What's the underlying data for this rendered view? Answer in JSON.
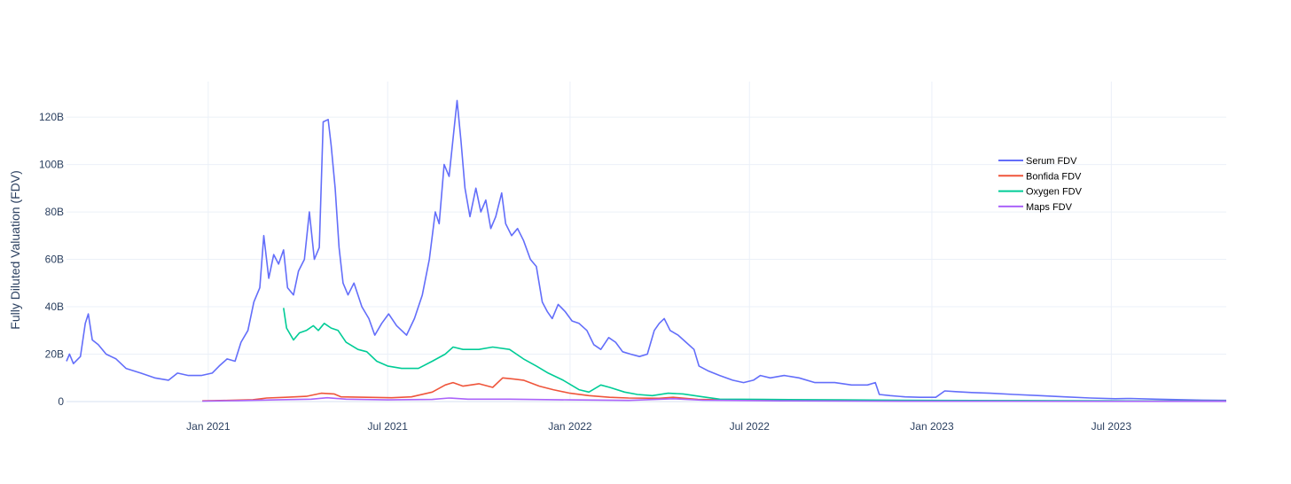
{
  "chart_data": {
    "type": "line",
    "title": "",
    "xlabel": "",
    "ylabel": "Fully Diluted Valuation (FDV)",
    "x_tick_labels": [
      "Jan 2021",
      "Jul 2021",
      "Jan 2022",
      "Jul 2022",
      "Jan 2023",
      "Jul 2023"
    ],
    "y_tick_labels": [
      "0",
      "20B",
      "40B",
      "60B",
      "80B",
      "100B",
      "120B"
    ],
    "xlim": [
      "2020-08-11",
      "2023-10-25"
    ],
    "ylim": [
      0,
      135
    ],
    "y_unit": "billions USD",
    "grid": true,
    "legend_position": "top-right",
    "series": [
      {
        "name": "Serum FDV",
        "color": "#636efa",
        "points": [
          [
            "2020-08-11",
            17
          ],
          [
            "2020-08-14",
            20
          ],
          [
            "2020-08-18",
            16
          ],
          [
            "2020-08-25",
            19
          ],
          [
            "2020-08-30",
            33
          ],
          [
            "2020-09-02",
            37
          ],
          [
            "2020-09-06",
            26
          ],
          [
            "2020-09-12",
            24
          ],
          [
            "2020-09-20",
            20
          ],
          [
            "2020-09-30",
            18
          ],
          [
            "2020-10-10",
            14
          ],
          [
            "2020-10-25",
            12
          ],
          [
            "2020-11-08",
            10
          ],
          [
            "2020-11-22",
            9
          ],
          [
            "2020-12-01",
            12
          ],
          [
            "2020-12-12",
            11
          ],
          [
            "2020-12-25",
            11
          ],
          [
            "2021-01-05",
            12
          ],
          [
            "2021-01-12",
            15
          ],
          [
            "2021-01-20",
            18
          ],
          [
            "2021-01-28",
            17
          ],
          [
            "2021-02-03",
            25
          ],
          [
            "2021-02-10",
            30
          ],
          [
            "2021-02-16",
            42
          ],
          [
            "2021-02-22",
            48
          ],
          [
            "2021-02-26",
            70
          ],
          [
            "2021-03-03",
            52
          ],
          [
            "2021-03-08",
            62
          ],
          [
            "2021-03-13",
            58
          ],
          [
            "2021-03-18",
            64
          ],
          [
            "2021-03-22",
            48
          ],
          [
            "2021-03-28",
            45
          ],
          [
            "2021-04-02",
            55
          ],
          [
            "2021-04-08",
            60
          ],
          [
            "2021-04-13",
            80
          ],
          [
            "2021-04-18",
            60
          ],
          [
            "2021-04-23",
            65
          ],
          [
            "2021-04-27",
            118
          ],
          [
            "2021-05-02",
            119
          ],
          [
            "2021-05-05",
            108
          ],
          [
            "2021-05-09",
            90
          ],
          [
            "2021-05-13",
            65
          ],
          [
            "2021-05-17",
            50
          ],
          [
            "2021-05-22",
            45
          ],
          [
            "2021-05-28",
            50
          ],
          [
            "2021-06-05",
            40
          ],
          [
            "2021-06-12",
            35
          ],
          [
            "2021-06-18",
            28
          ],
          [
            "2021-06-25",
            33
          ],
          [
            "2021-07-02",
            37
          ],
          [
            "2021-07-10",
            32
          ],
          [
            "2021-07-20",
            28
          ],
          [
            "2021-07-28",
            35
          ],
          [
            "2021-08-05",
            45
          ],
          [
            "2021-08-12",
            60
          ],
          [
            "2021-08-18",
            80
          ],
          [
            "2021-08-22",
            75
          ],
          [
            "2021-08-27",
            100
          ],
          [
            "2021-09-01",
            95
          ],
          [
            "2021-09-06",
            115
          ],
          [
            "2021-09-09",
            127
          ],
          [
            "2021-09-13",
            110
          ],
          [
            "2021-09-17",
            90
          ],
          [
            "2021-09-22",
            78
          ],
          [
            "2021-09-28",
            90
          ],
          [
            "2021-10-03",
            80
          ],
          [
            "2021-10-08",
            85
          ],
          [
            "2021-10-13",
            73
          ],
          [
            "2021-10-18",
            78
          ],
          [
            "2021-10-24",
            88
          ],
          [
            "2021-10-28",
            75
          ],
          [
            "2021-11-03",
            70
          ],
          [
            "2021-11-09",
            73
          ],
          [
            "2021-11-15",
            68
          ],
          [
            "2021-11-22",
            60
          ],
          [
            "2021-11-28",
            57
          ],
          [
            "2021-12-04",
            42
          ],
          [
            "2021-12-09",
            38
          ],
          [
            "2021-12-14",
            35
          ],
          [
            "2021-12-20",
            41
          ],
          [
            "2021-12-27",
            38
          ],
          [
            "2022-01-03",
            34
          ],
          [
            "2022-01-10",
            33
          ],
          [
            "2022-01-18",
            30
          ],
          [
            "2022-01-25",
            24
          ],
          [
            "2022-02-01",
            22
          ],
          [
            "2022-02-09",
            27
          ],
          [
            "2022-02-16",
            25
          ],
          [
            "2022-02-23",
            21
          ],
          [
            "2022-03-03",
            20
          ],
          [
            "2022-03-12",
            19
          ],
          [
            "2022-03-20",
            20
          ],
          [
            "2022-03-27",
            30
          ],
          [
            "2022-04-01",
            33
          ],
          [
            "2022-04-06",
            35
          ],
          [
            "2022-04-12",
            30
          ],
          [
            "2022-04-20",
            28
          ],
          [
            "2022-04-28",
            25
          ],
          [
            "2022-05-06",
            22
          ],
          [
            "2022-05-11",
            15
          ],
          [
            "2022-05-20",
            13
          ],
          [
            "2022-06-01",
            11
          ],
          [
            "2022-06-14",
            9
          ],
          [
            "2022-06-25",
            8
          ],
          [
            "2022-07-05",
            9
          ],
          [
            "2022-07-12",
            11
          ],
          [
            "2022-07-22",
            10
          ],
          [
            "2022-08-05",
            11
          ],
          [
            "2022-08-20",
            10
          ],
          [
            "2022-09-05",
            8
          ],
          [
            "2022-09-25",
            8
          ],
          [
            "2022-10-12",
            7
          ],
          [
            "2022-10-28",
            7
          ],
          [
            "2022-11-05",
            8
          ],
          [
            "2022-11-09",
            3
          ],
          [
            "2022-11-20",
            2.5
          ],
          [
            "2022-12-05",
            2
          ],
          [
            "2022-12-20",
            1.8
          ],
          [
            "2023-01-05",
            1.8
          ],
          [
            "2023-01-14",
            4.5
          ],
          [
            "2023-01-25",
            4.2
          ],
          [
            "2023-02-10",
            3.8
          ],
          [
            "2023-03-01",
            3.5
          ],
          [
            "2023-03-25",
            3.0
          ],
          [
            "2023-04-20",
            2.5
          ],
          [
            "2023-05-15",
            2.0
          ],
          [
            "2023-06-10",
            1.5
          ],
          [
            "2023-07-05",
            1.2
          ],
          [
            "2023-07-20",
            1.3
          ],
          [
            "2023-08-15",
            1.0
          ],
          [
            "2023-09-10",
            0.8
          ],
          [
            "2023-10-01",
            0.6
          ],
          [
            "2023-10-25",
            0.5
          ]
        ]
      },
      {
        "name": "Bonfida FDV",
        "color": "#ef553b",
        "points": [
          [
            "2020-12-26",
            0.3
          ],
          [
            "2021-01-20",
            0.5
          ],
          [
            "2021-02-15",
            0.8
          ],
          [
            "2021-03-01",
            1.5
          ],
          [
            "2021-03-20",
            1.8
          ],
          [
            "2021-04-10",
            2.2
          ],
          [
            "2021-04-25",
            3.5
          ],
          [
            "2021-05-08",
            3.2
          ],
          [
            "2021-05-15",
            2.0
          ],
          [
            "2021-06-10",
            1.8
          ],
          [
            "2021-07-05",
            1.6
          ],
          [
            "2021-07-25",
            2.0
          ],
          [
            "2021-08-15",
            4.0
          ],
          [
            "2021-08-28",
            7.0
          ],
          [
            "2021-09-05",
            8.0
          ],
          [
            "2021-09-15",
            6.5
          ],
          [
            "2021-10-01",
            7.5
          ],
          [
            "2021-10-15",
            6.0
          ],
          [
            "2021-10-25",
            10.0
          ],
          [
            "2021-11-05",
            9.5
          ],
          [
            "2021-11-15",
            9.0
          ],
          [
            "2021-12-01",
            6.5
          ],
          [
            "2021-12-15",
            5.0
          ],
          [
            "2022-01-01",
            3.5
          ],
          [
            "2022-01-20",
            2.5
          ],
          [
            "2022-02-10",
            1.8
          ],
          [
            "2022-03-01",
            1.5
          ],
          [
            "2022-04-01",
            1.4
          ],
          [
            "2022-04-15",
            1.8
          ],
          [
            "2022-05-10",
            0.9
          ],
          [
            "2022-07-01",
            0.6
          ],
          [
            "2022-10-01",
            0.4
          ],
          [
            "2023-01-01",
            0.3
          ],
          [
            "2023-04-01",
            0.3
          ],
          [
            "2023-07-01",
            0.2
          ],
          [
            "2023-10-25",
            0.15
          ]
        ]
      },
      {
        "name": "Oxygen FDV",
        "color": "#00cc96",
        "points": [
          [
            "2021-03-18",
            39.5
          ],
          [
            "2021-03-21",
            31
          ],
          [
            "2021-03-28",
            26
          ],
          [
            "2021-04-03",
            29
          ],
          [
            "2021-04-10",
            30
          ],
          [
            "2021-04-17",
            32
          ],
          [
            "2021-04-22",
            30
          ],
          [
            "2021-04-28",
            33
          ],
          [
            "2021-05-05",
            31
          ],
          [
            "2021-05-12",
            30
          ],
          [
            "2021-05-20",
            25
          ],
          [
            "2021-06-01",
            22
          ],
          [
            "2021-06-10",
            21
          ],
          [
            "2021-06-20",
            17
          ],
          [
            "2021-07-01",
            15
          ],
          [
            "2021-07-15",
            14
          ],
          [
            "2021-08-01",
            14
          ],
          [
            "2021-08-15",
            17
          ],
          [
            "2021-08-28",
            20
          ],
          [
            "2021-09-05",
            23
          ],
          [
            "2021-09-15",
            22
          ],
          [
            "2021-10-01",
            22
          ],
          [
            "2021-10-15",
            23
          ],
          [
            "2021-11-01",
            22
          ],
          [
            "2021-11-15",
            18
          ],
          [
            "2021-11-28",
            15
          ],
          [
            "2021-12-10",
            12
          ],
          [
            "2021-12-25",
            9
          ],
          [
            "2022-01-10",
            5
          ],
          [
            "2022-01-20",
            4
          ],
          [
            "2022-02-01",
            7
          ],
          [
            "2022-02-10",
            6
          ],
          [
            "2022-02-25",
            4
          ],
          [
            "2022-03-10",
            3
          ],
          [
            "2022-03-25",
            2.5
          ],
          [
            "2022-04-10",
            3.5
          ],
          [
            "2022-04-25",
            3.2
          ],
          [
            "2022-05-15",
            2.0
          ],
          [
            "2022-06-01",
            1.0
          ],
          [
            "2022-07-15",
            0.9
          ],
          [
            "2022-10-01",
            0.7
          ],
          [
            "2023-01-01",
            0.5
          ],
          [
            "2023-04-01",
            0.4
          ],
          [
            "2023-07-01",
            0.3
          ],
          [
            "2023-10-25",
            0.2
          ]
        ]
      },
      {
        "name": "Maps FDV",
        "color": "#ab63fa",
        "points": [
          [
            "2020-12-26",
            0.2
          ],
          [
            "2021-02-01",
            0.4
          ],
          [
            "2021-03-15",
            0.8
          ],
          [
            "2021-04-15",
            1.0
          ],
          [
            "2021-05-01",
            1.6
          ],
          [
            "2021-05-20",
            1.0
          ],
          [
            "2021-07-01",
            0.7
          ],
          [
            "2021-08-15",
            0.9
          ],
          [
            "2021-09-01",
            1.5
          ],
          [
            "2021-09-20",
            1.0
          ],
          [
            "2021-11-01",
            1.0
          ],
          [
            "2022-01-01",
            0.7
          ],
          [
            "2022-03-01",
            0.5
          ],
          [
            "2022-04-15",
            1.2
          ],
          [
            "2022-05-15",
            0.6
          ],
          [
            "2022-08-01",
            0.3
          ],
          [
            "2022-11-01",
            0.2
          ],
          [
            "2023-03-01",
            0.15
          ],
          [
            "2023-07-01",
            0.1
          ],
          [
            "2023-10-25",
            0.1
          ]
        ]
      }
    ]
  }
}
